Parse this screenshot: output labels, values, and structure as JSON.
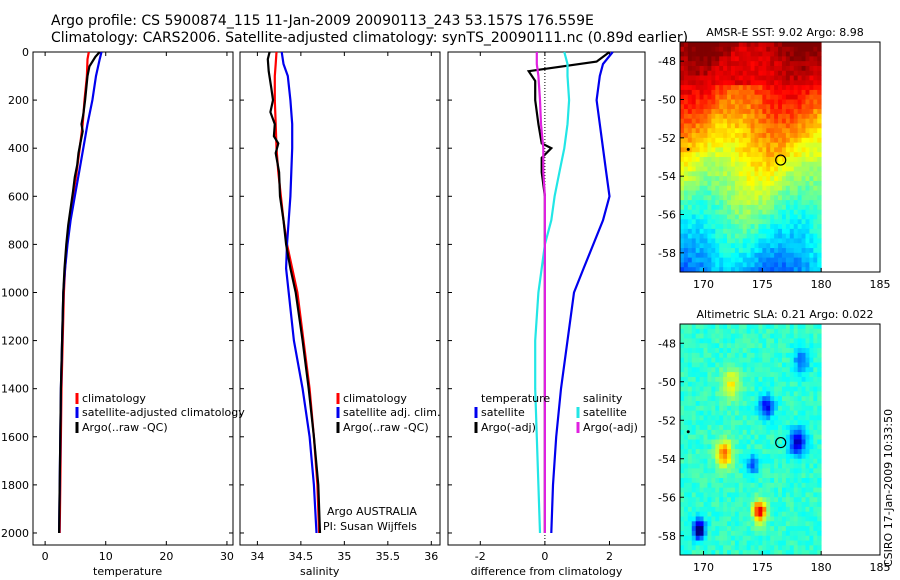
{
  "header": {
    "line1": "Argo profile: CS 5900874_115 11-Jan-2009 20090113_243 53.157S 176.559E",
    "line2": "Climatology: CARS2006. Satellite-adjusted climatology: synTS_20090111.nc (0.89d earlier)"
  },
  "credit": "CSIRO 17-Jan-2009 10:33:50",
  "colors": {
    "red": "#ff0000",
    "blue": "#0000ee",
    "black": "#000000",
    "cyan": "#22e6e6",
    "magenta": "#e020e0"
  },
  "chart_data": [
    {
      "id": "temperature",
      "type": "line",
      "xlabel": "temperature",
      "xlim": [
        -2,
        31
      ],
      "ylim": [
        2050,
        0
      ],
      "xticks": [
        0,
        10,
        20,
        30
      ],
      "yticks": [
        0,
        200,
        400,
        600,
        800,
        1000,
        1200,
        1400,
        1600,
        1800,
        2000
      ],
      "legend": [
        "climatology",
        "satellite-adjusted climatology",
        "Argo(..raw -QC)"
      ],
      "series": [
        {
          "name": "climatology",
          "color": "red",
          "points": [
            [
              7.2,
              0
            ],
            [
              7.0,
              30
            ],
            [
              6.9,
              100
            ],
            [
              6.5,
              200
            ],
            [
              6.2,
              300
            ],
            [
              5.7,
              400
            ],
            [
              5.2,
              500
            ],
            [
              4.6,
              600
            ],
            [
              4.0,
              700
            ],
            [
              3.6,
              800
            ],
            [
              3.3,
              900
            ],
            [
              3.1,
              1000
            ],
            [
              2.9,
              1200
            ],
            [
              2.7,
              1400
            ],
            [
              2.6,
              1600
            ],
            [
              2.5,
              1800
            ],
            [
              2.4,
              2000
            ]
          ]
        },
        {
          "name": "satellite-adjusted climatology",
          "color": "blue",
          "points": [
            [
              9.3,
              0
            ],
            [
              9.0,
              30
            ],
            [
              8.4,
              100
            ],
            [
              7.8,
              200
            ],
            [
              7.0,
              300
            ],
            [
              6.3,
              400
            ],
            [
              5.6,
              500
            ],
            [
              4.9,
              600
            ],
            [
              4.2,
              700
            ],
            [
              3.7,
              800
            ],
            [
              3.3,
              900
            ],
            [
              3.0,
              1000
            ],
            [
              2.8,
              1200
            ],
            [
              2.6,
              1400
            ],
            [
              2.5,
              1600
            ],
            [
              2.4,
              1800
            ],
            [
              2.3,
              2000
            ]
          ]
        },
        {
          "name": "Argo(..raw -QC)",
          "color": "black",
          "points": [
            [
              9.0,
              0
            ],
            [
              8.3,
              20
            ],
            [
              7.3,
              60
            ],
            [
              7.0,
              100
            ],
            [
              6.6,
              200
            ],
            [
              6.3,
              260
            ],
            [
              6.0,
              300
            ],
            [
              6.2,
              330
            ],
            [
              5.8,
              380
            ],
            [
              5.5,
              420
            ],
            [
              5.3,
              470
            ],
            [
              4.9,
              520
            ],
            [
              4.6,
              580
            ],
            [
              4.2,
              650
            ],
            [
              3.8,
              720
            ],
            [
              3.5,
              800
            ],
            [
              3.2,
              900
            ],
            [
              3.0,
              1000
            ],
            [
              2.8,
              1200
            ],
            [
              2.6,
              1400
            ],
            [
              2.5,
              1600
            ],
            [
              2.4,
              1800
            ],
            [
              2.3,
              2000
            ]
          ]
        }
      ]
    },
    {
      "id": "salinity",
      "type": "line",
      "xlabel": "salinity",
      "xlim": [
        33.8,
        36.1
      ],
      "ylim": [
        2050,
        0
      ],
      "xticks": [
        34,
        34.5,
        35,
        35.5,
        36
      ],
      "legend": [
        "climatology",
        "satellite adj. clim.",
        "Argo(..raw -QC)"
      ],
      "annotation": [
        "Argo AUSTRALIA",
        "PI: Susan Wijffels"
      ],
      "series": [
        {
          "name": "climatology",
          "color": "red",
          "points": [
            [
              34.22,
              0
            ],
            [
              34.21,
              50
            ],
            [
              34.2,
              100
            ],
            [
              34.2,
              200
            ],
            [
              34.21,
              300
            ],
            [
              34.22,
              400
            ],
            [
              34.24,
              500
            ],
            [
              34.27,
              600
            ],
            [
              34.3,
              700
            ],
            [
              34.34,
              800
            ],
            [
              34.4,
              900
            ],
            [
              34.46,
              1000
            ],
            [
              34.53,
              1200
            ],
            [
              34.6,
              1400
            ],
            [
              34.65,
              1600
            ],
            [
              34.69,
              1800
            ],
            [
              34.71,
              2000
            ]
          ]
        },
        {
          "name": "satellite adj. clim.",
          "color": "blue",
          "points": [
            [
              34.28,
              0
            ],
            [
              34.3,
              50
            ],
            [
              34.35,
              100
            ],
            [
              34.38,
              200
            ],
            [
              34.4,
              300
            ],
            [
              34.4,
              400
            ],
            [
              34.39,
              500
            ],
            [
              34.38,
              600
            ],
            [
              34.36,
              700
            ],
            [
              34.34,
              800
            ],
            [
              34.33,
              900
            ],
            [
              34.36,
              1000
            ],
            [
              34.42,
              1200
            ],
            [
              34.52,
              1400
            ],
            [
              34.6,
              1600
            ],
            [
              34.65,
              1800
            ],
            [
              34.68,
              2000
            ]
          ]
        },
        {
          "name": "Argo(..raw -QC)",
          "color": "black",
          "points": [
            [
              34.14,
              0
            ],
            [
              34.12,
              30
            ],
            [
              34.13,
              80
            ],
            [
              34.16,
              150
            ],
            [
              34.18,
              200
            ],
            [
              34.15,
              250
            ],
            [
              34.2,
              300
            ],
            [
              34.19,
              350
            ],
            [
              34.24,
              380
            ],
            [
              34.21,
              420
            ],
            [
              34.23,
              460
            ],
            [
              34.25,
              500
            ],
            [
              34.26,
              600
            ],
            [
              34.3,
              700
            ],
            [
              34.33,
              800
            ],
            [
              34.38,
              900
            ],
            [
              34.44,
              1000
            ],
            [
              34.52,
              1200
            ],
            [
              34.59,
              1400
            ],
            [
              34.65,
              1600
            ],
            [
              34.7,
              1800
            ],
            [
              34.72,
              2000
            ]
          ]
        }
      ]
    },
    {
      "id": "difference",
      "type": "line",
      "xlabel": "difference from climatology",
      "xlim": [
        -3,
        3.1
      ],
      "ylim": [
        2050,
        0
      ],
      "xticks": [
        -2,
        0,
        2
      ],
      "legend_left": {
        "title": "temperature",
        "items": [
          "satellite",
          "Argo(-adj)"
        ]
      },
      "legend_right": {
        "title": "salinity",
        "items": [
          "satellite",
          "Argo(-adj)"
        ]
      },
      "series": [
        {
          "name": "temperature satellite",
          "color": "blue",
          "points": [
            [
              2.1,
              0
            ],
            [
              1.8,
              50
            ],
            [
              1.7,
              100
            ],
            [
              1.6,
              200
            ],
            [
              1.7,
              300
            ],
            [
              1.8,
              400
            ],
            [
              1.9,
              500
            ],
            [
              2.0,
              600
            ],
            [
              1.8,
              700
            ],
            [
              1.5,
              800
            ],
            [
              1.2,
              900
            ],
            [
              0.9,
              1000
            ],
            [
              0.7,
              1200
            ],
            [
              0.5,
              1400
            ],
            [
              0.35,
              1600
            ],
            [
              0.25,
              1800
            ],
            [
              0.2,
              2000
            ]
          ]
        },
        {
          "name": "temperature Argo(-adj)",
          "color": "black",
          "points": [
            [
              2.0,
              0
            ],
            [
              1.6,
              40
            ],
            [
              -0.5,
              80
            ],
            [
              -0.3,
              120
            ],
            [
              -0.3,
              200
            ],
            [
              -0.2,
              300
            ],
            [
              -0.1,
              380
            ],
            [
              0.2,
              400
            ],
            [
              -0.1,
              440
            ],
            [
              -0.1,
              500
            ],
            [
              0,
              600
            ],
            [
              0,
              800
            ],
            [
              0,
              1000
            ],
            [
              0,
              1200
            ],
            [
              0,
              1400
            ],
            [
              0,
              1600
            ],
            [
              0,
              1800
            ],
            [
              0,
              2000
            ]
          ]
        },
        {
          "name": "salinity satellite",
          "color": "cyan",
          "points": [
            [
              0.6,
              0
            ],
            [
              0.7,
              50
            ],
            [
              0.7,
              100
            ],
            [
              0.75,
              200
            ],
            [
              0.7,
              300
            ],
            [
              0.6,
              400
            ],
            [
              0.45,
              500
            ],
            [
              0.3,
              600
            ],
            [
              0.2,
              700
            ],
            [
              0,
              800
            ],
            [
              -0.1,
              900
            ],
            [
              -0.2,
              1000
            ],
            [
              -0.3,
              1200
            ],
            [
              -0.3,
              1400
            ],
            [
              -0.25,
              1600
            ],
            [
              -0.2,
              1800
            ],
            [
              -0.15,
              2000
            ]
          ]
        },
        {
          "name": "salinity Argo(-adj)",
          "color": "magenta",
          "points": [
            [
              -0.25,
              0
            ],
            [
              -0.25,
              50
            ],
            [
              -0.2,
              100
            ],
            [
              -0.15,
              200
            ],
            [
              -0.12,
              300
            ],
            [
              -0.05,
              400
            ],
            [
              -0.05,
              500
            ],
            [
              0,
              600
            ],
            [
              0,
              800
            ],
            [
              0,
              1000
            ],
            [
              0,
              1200
            ],
            [
              0,
              1400
            ],
            [
              0,
              1600
            ],
            [
              0,
              1800
            ],
            [
              0,
              2000
            ]
          ]
        }
      ]
    },
    {
      "id": "sst-map",
      "type": "heatmap",
      "title": "AMSR-E SST: 9.02 Argo: 8.98",
      "xlim": [
        168,
        185
      ],
      "ylim": [
        -59,
        -47
      ],
      "xticks": [
        170,
        175,
        180,
        185
      ],
      "yticks": [
        -48,
        -50,
        -52,
        -54,
        -56,
        -58
      ],
      "argo_position": [
        176.56,
        -53.16
      ]
    },
    {
      "id": "sla-map",
      "type": "heatmap",
      "title": "Altimetric SLA: 0.21 Argo: 0.022",
      "xlim": [
        168,
        185
      ],
      "ylim": [
        -59,
        -47
      ],
      "xticks": [
        170,
        175,
        180,
        185
      ],
      "yticks": [
        -48,
        -50,
        -52,
        -54,
        -56,
        -58
      ],
      "argo_position": [
        176.56,
        -53.16
      ]
    }
  ]
}
